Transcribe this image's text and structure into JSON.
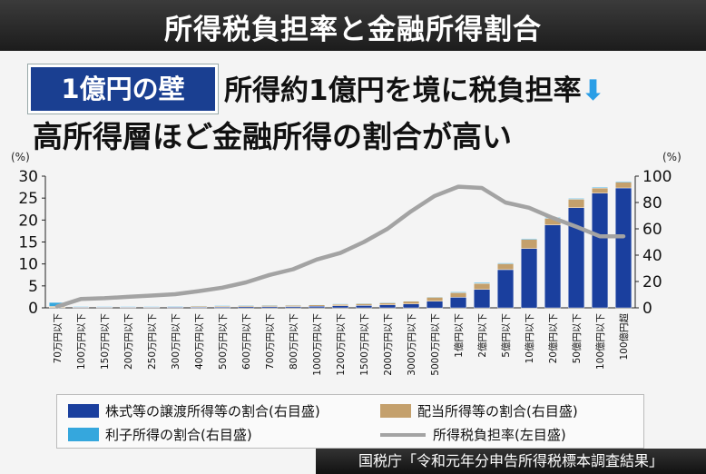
{
  "title": "所得税負担率と金融所得割合",
  "badge": "1億円の壁",
  "headline1": "所得約1億円を境に税負担率",
  "headline1_arrow": "⬇",
  "headline2": "高所得層ほど金融所得の割合が高い",
  "source": "国税庁「令和元年分申告所得税標本調査結果」",
  "legend": {
    "stock": "株式等の譲渡所得等の割合(右目盛)",
    "dividend": "配当所得等の割合(右目盛)",
    "interest": "利子所得の割合(右目盛)",
    "tax": "所得税負担率(左目盛)"
  },
  "colors": {
    "stock": "#1a3f9e",
    "dividend": "#c4a06c",
    "interest": "#35a7dd",
    "tax": "#a3a3a3"
  },
  "chart_data": {
    "type": "bar",
    "categories": [
      "70万円以下",
      "100万円以下",
      "150万円以下",
      "200万円以下",
      "250万円以下",
      "300万円以下",
      "400万円以下",
      "500万円以下",
      "600万円以下",
      "700万円以下",
      "800万円以下",
      "1000万円以下",
      "1200万円以下",
      "1500万円以下",
      "2000万円以下",
      "3000万円以下",
      "5000万円以下",
      "1億円以下",
      "2億円以下",
      "5億円以下",
      "10億円以下",
      "20億円以下",
      "50億円以下",
      "100億円以下",
      "100億円超"
    ],
    "left_axis": {
      "unit": "(%)",
      "range": [
        0,
        30
      ],
      "ticks": [
        0,
        5,
        10,
        15,
        20,
        25,
        30
      ]
    },
    "right_axis": {
      "unit": "(%)",
      "range": [
        0,
        100
      ],
      "ticks": [
        0,
        20,
        40,
        60,
        80,
        100
      ]
    },
    "series": [
      {
        "name": "株式等の譲渡所得等の割合(右目盛)",
        "axis": "right",
        "stacked": true,
        "values": [
          0.3,
          0.4,
          0.4,
          0.4,
          0.4,
          0.5,
          0.6,
          0.7,
          0.9,
          1.0,
          1.0,
          1.2,
          1.5,
          1.8,
          2.2,
          3.0,
          5.0,
          8.0,
          14.0,
          29.0,
          45.0,
          63.0,
          76.0,
          87.0,
          91.0
        ]
      },
      {
        "name": "配当所得等の割合(右目盛)",
        "axis": "right",
        "stacked": true,
        "values": [
          0.8,
          0.4,
          0.4,
          0.4,
          0.4,
          0.5,
          0.6,
          0.7,
          0.8,
          0.8,
          0.9,
          1.0,
          1.2,
          1.4,
          1.6,
          2.0,
          3.0,
          3.5,
          4.5,
          4.5,
          7.0,
          5.0,
          6.5,
          4.0,
          4.5
        ]
      },
      {
        "name": "利子所得の割合(右目盛)",
        "axis": "right",
        "stacked": true,
        "values": [
          3.0,
          0.5,
          0.4,
          0.4,
          0.4,
          0.4,
          0.4,
          0.4,
          0.4,
          0.4,
          0.4,
          0.4,
          0.4,
          0.4,
          0.4,
          0.4,
          0.4,
          0.6,
          0.6,
          0.6,
          0.6,
          0.6,
          0.6,
          0.6,
          0.6
        ]
      },
      {
        "name": "所得税負担率(左目盛)",
        "axis": "left",
        "type": "line",
        "values": [
          0.3,
          2.0,
          2.2,
          2.5,
          2.8,
          3.1,
          3.8,
          4.6,
          5.8,
          7.5,
          8.8,
          11.0,
          12.5,
          15.0,
          18.0,
          22.0,
          25.5,
          27.6,
          27.3,
          24.0,
          22.8,
          20.5,
          18.5,
          16.3,
          16.3
        ]
      }
    ]
  }
}
